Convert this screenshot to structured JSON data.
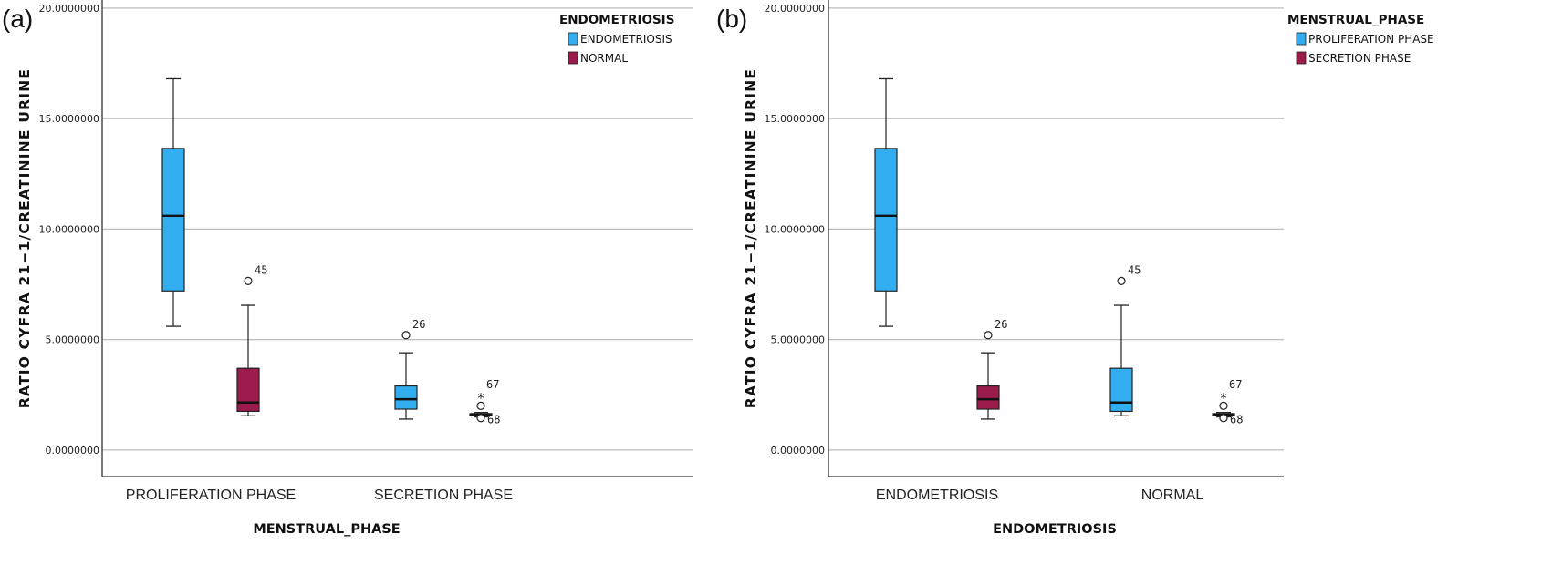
{
  "colors": {
    "blue": "#32aef0",
    "maroon": "#9c1b4d",
    "grid": "#bdbdbd",
    "axis": "#333333"
  },
  "chart_data": [
    {
      "type": "boxplot",
      "panel_label": "(a)",
      "xlabel": "MENSTRUAL_PHASE",
      "ylabel": "RATIO CYFRA 21-1/CREATININE URINE",
      "ylim": [
        -1.2,
        20.2
      ],
      "yticks": [
        0,
        5,
        10,
        15,
        20
      ],
      "ytick_labels": [
        "0.0000000",
        "5.0000000",
        "10.0000000",
        "15.0000000",
        "20.0000000"
      ],
      "grid": true,
      "categories": [
        "PROLIFERATION PHASE",
        "SECRETION PHASE"
      ],
      "legend": {
        "title": "ENDOMETRIOSIS",
        "position": "right",
        "items": [
          {
            "label": "ENDOMETRIOSIS",
            "color": "blue"
          },
          {
            "label": "NORMAL",
            "color": "maroon"
          }
        ]
      },
      "boxes": [
        {
          "category": 0,
          "group": 0,
          "color": "blue",
          "min": 5.6,
          "q1": 7.2,
          "median": 10.6,
          "q3": 13.65,
          "max": 16.8,
          "outliers": []
        },
        {
          "category": 0,
          "group": 1,
          "color": "maroon",
          "min": 1.55,
          "q1": 1.75,
          "median": 2.15,
          "q3": 3.7,
          "max": 6.55,
          "outliers": [
            {
              "value": 7.65,
              "label": "45",
              "symbol": "circle"
            }
          ]
        },
        {
          "category": 1,
          "group": 0,
          "color": "blue",
          "min": 1.4,
          "q1": 1.85,
          "median": 2.3,
          "q3": 2.9,
          "max": 4.4,
          "outliers": [
            {
              "value": 5.2,
              "label": "26",
              "symbol": "circle"
            }
          ]
        },
        {
          "category": 1,
          "group": 1,
          "color": "maroon",
          "min": 1.5,
          "q1": 1.55,
          "median": 1.6,
          "q3": 1.65,
          "max": 1.7,
          "outliers": [
            {
              "value": 2.0,
              "label": "",
              "symbol": "circle"
            },
            {
              "value": 2.55,
              "label": "67",
              "symbol": "star"
            },
            {
              "value": 1.45,
              "label": "68",
              "symbol": "circle"
            }
          ]
        }
      ]
    },
    {
      "type": "boxplot",
      "panel_label": "(b)",
      "xlabel": "ENDOMETRIOSIS",
      "ylabel": "RATIO CYFRA 21-1/CREATININE URINE",
      "ylim": [
        -1.2,
        20.2
      ],
      "yticks": [
        0,
        5,
        10,
        15,
        20
      ],
      "ytick_labels": [
        "0.0000000",
        "5.0000000",
        "10.0000000",
        "15.0000000",
        "20.0000000"
      ],
      "grid": true,
      "categories": [
        "ENDOMETRIOSIS",
        "NORMAL"
      ],
      "legend": {
        "title": "MENSTRUAL_PHASE",
        "position": "right",
        "items": [
          {
            "label": "PROLIFERATION PHASE",
            "color": "blue"
          },
          {
            "label": "SECRETION PHASE",
            "color": "maroon"
          }
        ]
      },
      "boxes": [
        {
          "category": 0,
          "group": 0,
          "color": "blue",
          "min": 5.6,
          "q1": 7.2,
          "median": 10.6,
          "q3": 13.65,
          "max": 16.8,
          "outliers": []
        },
        {
          "category": 0,
          "group": 1,
          "color": "maroon",
          "min": 1.4,
          "q1": 1.85,
          "median": 2.3,
          "q3": 2.9,
          "max": 4.4,
          "outliers": [
            {
              "value": 5.2,
              "label": "26",
              "symbol": "circle"
            }
          ]
        },
        {
          "category": 1,
          "group": 0,
          "color": "blue",
          "min": 1.55,
          "q1": 1.75,
          "median": 2.15,
          "q3": 3.7,
          "max": 6.55,
          "outliers": [
            {
              "value": 7.65,
              "label": "45",
              "symbol": "circle"
            }
          ]
        },
        {
          "category": 1,
          "group": 1,
          "color": "maroon",
          "min": 1.5,
          "q1": 1.55,
          "median": 1.6,
          "q3": 1.65,
          "max": 1.7,
          "outliers": [
            {
              "value": 2.0,
              "label": "",
              "symbol": "circle"
            },
            {
              "value": 2.55,
              "label": "67",
              "symbol": "star"
            },
            {
              "value": 1.45,
              "label": "68",
              "symbol": "circle"
            }
          ]
        }
      ]
    }
  ]
}
